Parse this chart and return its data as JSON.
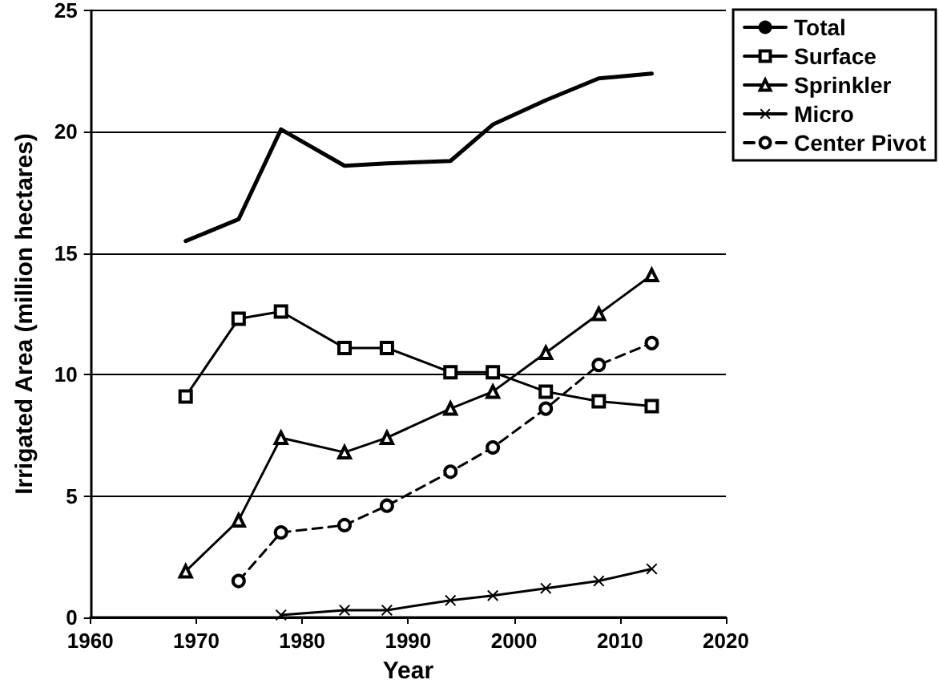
{
  "chart_data": {
    "type": "line",
    "xlabel": "Year",
    "ylabel": "Irrigated Area (million hectares)",
    "xlim": [
      1960,
      2020
    ],
    "xticks": [
      1960,
      1970,
      1980,
      1990,
      2000,
      2010,
      2020
    ],
    "ylim": [
      0,
      25
    ],
    "yticks": [
      0,
      5,
      10,
      15,
      20,
      25
    ],
    "grid": "y",
    "legend": "top right",
    "line_style": "solid",
    "series": [
      {
        "name": "Total",
        "color": "#000000",
        "marker": "none",
        "x": [
          1969,
          1974,
          1978,
          1984,
          1988,
          1994,
          1998,
          2003,
          2008,
          2013
        ],
        "values": [
          15.5,
          16.4,
          20.1,
          18.6,
          18.7,
          18.8,
          20.3,
          21.3,
          22.2,
          22.4
        ]
      },
      {
        "name": "Surface",
        "color": "#000000",
        "marker": "square",
        "x": [
          1969,
          1974,
          1978,
          1984,
          1988,
          1994,
          1998,
          2003,
          2008,
          2013
        ],
        "values": [
          9.1,
          12.3,
          12.6,
          11.1,
          11.1,
          10.1,
          10.1,
          9.3,
          8.9,
          8.7
        ]
      },
      {
        "name": "Sprinkler",
        "color": "#000000",
        "marker": "triangle",
        "x": [
          1969,
          1974,
          1978,
          1984,
          1988,
          1994,
          1998,
          2003,
          2008,
          2013
        ],
        "values": [
          1.9,
          4.0,
          7.4,
          6.8,
          7.4,
          8.6,
          9.3,
          10.9,
          12.5,
          14.1
        ]
      },
      {
        "name": "Micro",
        "color": "#000000",
        "marker": "cross",
        "x": [
          1978,
          1984,
          1988,
          1994,
          1998,
          2003,
          2008,
          2013
        ],
        "values": [
          0.1,
          0.3,
          0.3,
          0.7,
          0.9,
          1.2,
          1.5,
          2.0
        ]
      },
      {
        "name": "Center Pivot",
        "color": "#000000",
        "marker": "circle",
        "line_style": "dashed",
        "x": [
          1974,
          1978,
          1984,
          1988,
          1994,
          1998,
          2003,
          2008,
          2013
        ],
        "values": [
          1.5,
          3.5,
          3.8,
          4.6,
          6.0,
          7.0,
          8.6,
          10.4,
          11.3
        ]
      }
    ]
  }
}
